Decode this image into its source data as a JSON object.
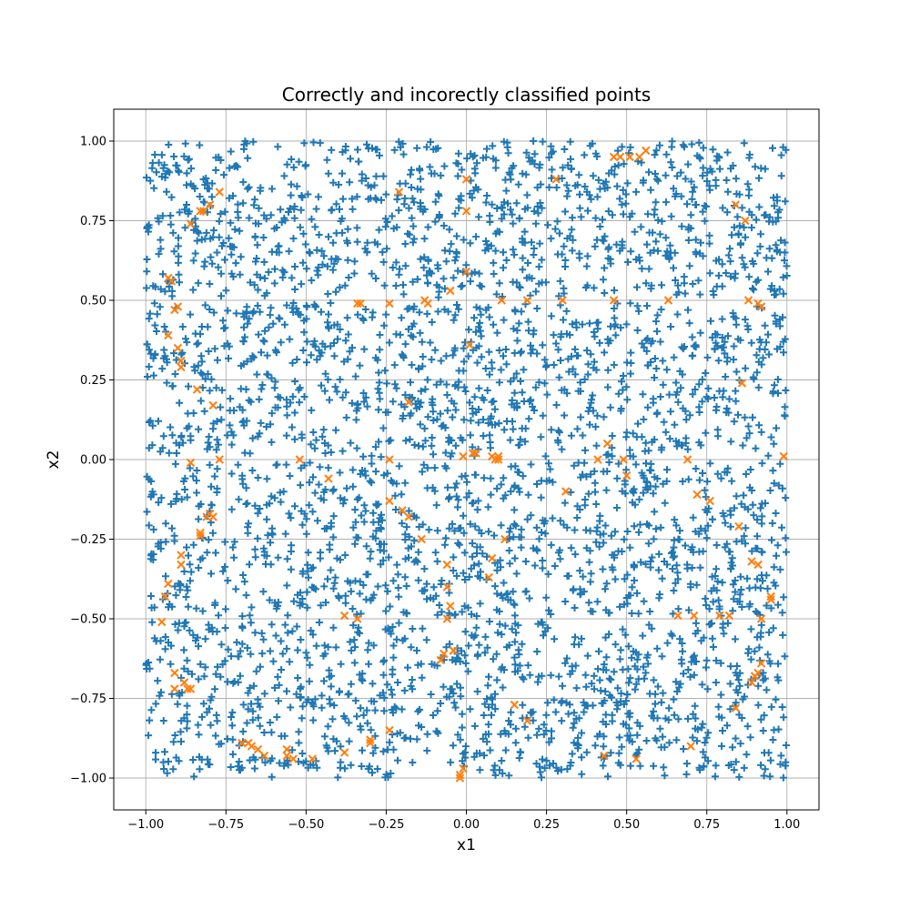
{
  "chart_data": {
    "type": "scatter",
    "title": "Correctly and incorectly classified points",
    "xlabel": "x1",
    "ylabel": "x2",
    "xlim": [
      -1.1,
      1.1
    ],
    "ylim": [
      -1.1,
      1.1
    ],
    "grid": true,
    "xticks": [
      -1.0,
      -0.75,
      -0.5,
      -0.25,
      0.0,
      0.25,
      0.5,
      0.75,
      1.0
    ],
    "xtick_labels": [
      "−1.00",
      "−0.75",
      "−0.50",
      "−0.25",
      "0.00",
      "0.25",
      "0.50",
      "0.75",
      "1.00"
    ],
    "yticks": [
      -1.0,
      -0.75,
      -0.5,
      -0.25,
      0.0,
      0.25,
      0.5,
      0.75,
      1.0
    ],
    "ytick_labels": [
      "−1.00",
      "−0.75",
      "−0.50",
      "−0.25",
      "0.00",
      "0.25",
      "0.50",
      "0.75",
      "1.00"
    ],
    "series": [
      {
        "marker": "+",
        "color": "#1f77b4",
        "distribution": "uniform over [-1, 1] x [-1, 1]",
        "count": 3600,
        "seed": 12345,
        "exclude_near_labels": {
          "levels": [
            -0.5,
            0.0,
            0.5
          ],
          "tolerance": 0.008
        }
      },
      {
        "marker": "x",
        "color": "#ff7f0e",
        "x": [
          -0.86,
          -0.83,
          -0.82,
          -0.8,
          -0.77,
          -0.93,
          -0.92,
          -0.9,
          -0.9,
          -0.89,
          -0.93,
          -0.91,
          -0.89,
          -0.84,
          -0.79,
          -0.86,
          -0.77,
          -0.83,
          -0.81,
          -0.8,
          -0.79,
          -0.83,
          -0.52,
          -0.43,
          -0.34,
          -0.33,
          -0.24,
          -0.24,
          -0.13,
          -0.12,
          -0.21,
          -0.2,
          -0.18,
          -0.24,
          -0.18,
          -0.14,
          -0.05,
          0.0,
          0.0,
          0.0,
          0.01,
          0.03,
          0.08,
          0.1,
          0.11,
          0.19,
          0.3,
          0.31,
          0.41,
          0.44,
          0.46,
          0.48,
          0.49,
          0.5,
          0.51,
          0.46,
          0.54,
          0.56,
          0.28,
          0.12,
          -0.06,
          -0.01,
          0.02,
          0.08,
          0.09,
          0.1,
          0.63,
          0.69,
          0.72,
          0.76,
          0.85,
          0.86,
          0.87,
          0.91,
          0.92,
          0.99,
          0.84,
          0.88,
          -0.89,
          -0.89,
          -0.91,
          -0.94,
          -0.93,
          -0.95,
          -0.38,
          -0.34,
          -0.08,
          -0.06,
          -0.05,
          -0.04,
          -0.07,
          -0.06,
          0.07,
          0.15,
          0.19,
          -0.91,
          -0.88,
          -0.87,
          -0.86,
          -0.7,
          -0.68,
          -0.67,
          -0.65,
          -0.63,
          -0.56,
          -0.56,
          -0.54,
          -0.48,
          -0.38,
          -0.3,
          -0.3,
          -0.24,
          -0.01,
          -0.02,
          -0.02,
          -0.04,
          0.43,
          0.53,
          0.7,
          0.66,
          0.71,
          0.79,
          0.82,
          0.84,
          0.89,
          0.9,
          0.91,
          0.92,
          0.95,
          0.95,
          0.92,
          0.91,
          0.89
        ],
        "y": [
          0.74,
          0.78,
          0.78,
          0.8,
          0.84,
          0.57,
          0.56,
          0.48,
          0.35,
          0.31,
          0.39,
          0.47,
          0.29,
          0.22,
          0.17,
          -0.01,
          0.0,
          -0.23,
          -0.18,
          -0.17,
          -0.18,
          -0.24,
          0.0,
          -0.06,
          0.49,
          0.49,
          0.49,
          0.0,
          0.5,
          0.49,
          0.84,
          -0.16,
          -0.18,
          -0.13,
          0.18,
          -0.25,
          0.53,
          0.88,
          0.78,
          0.59,
          0.36,
          0.02,
          0.01,
          0.01,
          0.5,
          0.5,
          0.5,
          -0.1,
          0.0,
          0.05,
          0.5,
          0.95,
          0.0,
          -0.05,
          0.95,
          0.95,
          0.95,
          0.97,
          0.88,
          -0.25,
          -0.33,
          0.01,
          0.02,
          -0.31,
          0.0,
          0.0,
          0.5,
          0.0,
          -0.11,
          -0.13,
          -0.21,
          0.24,
          0.75,
          0.49,
          0.48,
          0.01,
          0.8,
          0.5,
          -0.3,
          -0.33,
          -0.67,
          -0.43,
          -0.39,
          -0.51,
          -0.49,
          -0.5,
          -0.63,
          -0.4,
          -0.46,
          -0.6,
          -0.61,
          -0.5,
          -0.37,
          -0.77,
          -0.82,
          -0.72,
          -0.7,
          -0.72,
          -0.72,
          -0.89,
          -0.89,
          -0.9,
          -0.91,
          -0.93,
          -0.93,
          -0.91,
          -0.94,
          -0.94,
          -0.92,
          -0.88,
          -0.89,
          -0.85,
          -0.97,
          -0.99,
          -1.0,
          -0.6,
          -0.93,
          -0.94,
          -0.9,
          -0.49,
          -0.49,
          -0.49,
          -0.49,
          -0.78,
          -0.7,
          -0.68,
          -0.67,
          -0.64,
          -0.43,
          -0.44,
          -0.5,
          -0.33,
          -0.32
        ]
      }
    ]
  }
}
